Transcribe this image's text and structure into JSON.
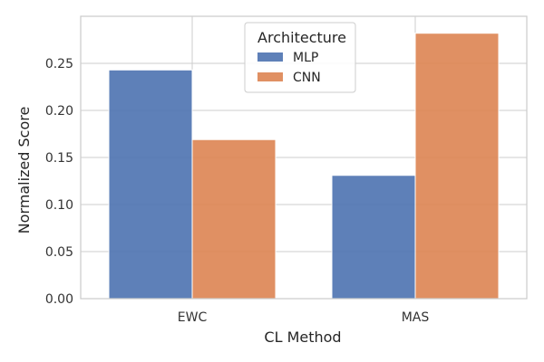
{
  "chart_data": {
    "type": "bar",
    "title": "",
    "xlabel": "CL Method",
    "ylabel": "Normalized Score",
    "categories": [
      "EWC",
      "MAS"
    ],
    "series": [
      {
        "name": "MLP",
        "values": [
          0.243,
          0.131
        ]
      },
      {
        "name": "CNN",
        "values": [
          0.169,
          0.282
        ]
      }
    ],
    "ylim": [
      0,
      0.3
    ],
    "yticks": [
      0.0,
      0.05,
      0.1,
      0.15,
      0.2,
      0.25
    ],
    "ytick_labels": [
      "0.00",
      "0.05",
      "0.10",
      "0.15",
      "0.20",
      "0.25"
    ],
    "grid": true,
    "legend": {
      "title": "Architecture",
      "placement": "top-center"
    },
    "colors": {
      "MLP": "#4c72b0",
      "CNN": "#dd8452",
      "grid": "#cccccc",
      "frame": "#cccccc"
    }
  }
}
